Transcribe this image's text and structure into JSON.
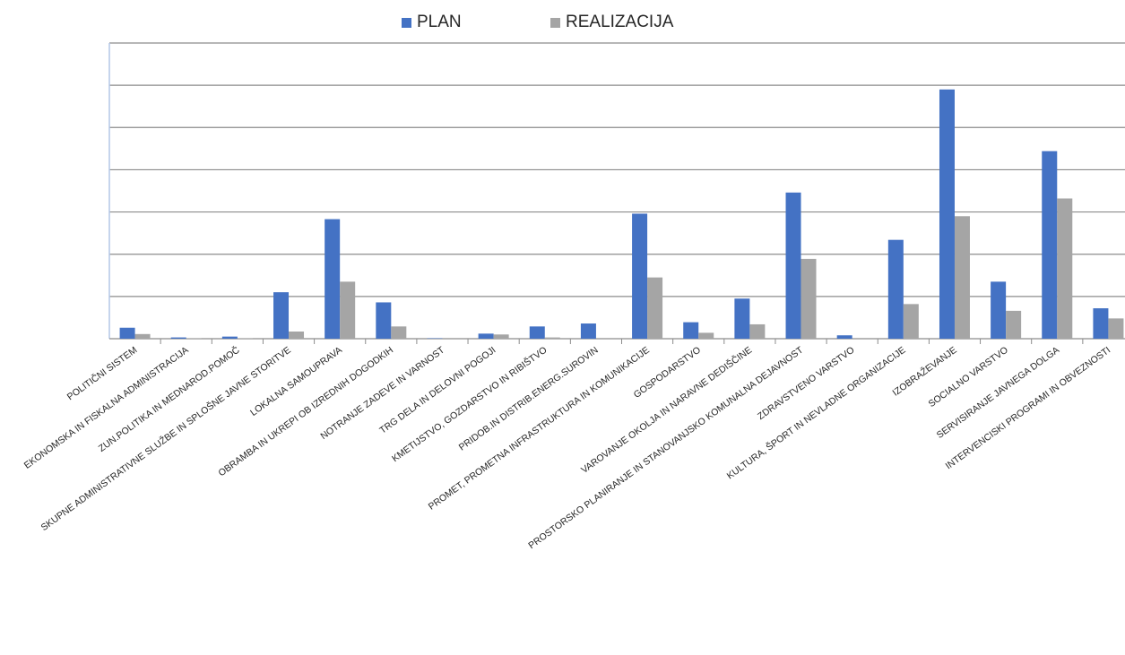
{
  "chart_data": {
    "type": "bar",
    "title": "",
    "xlabel": "",
    "ylabel": "",
    "ylim": [
      0,
      7
    ],
    "grid": true,
    "legend_position": "top",
    "colors": {
      "PLAN": "#4472c4",
      "REALIZACIJA": "#a5a5a5",
      "grid": "#8c8c8c",
      "axis": "#b4c7e7"
    },
    "categories": [
      "POLITIČNI SISTEM",
      "EKONOMSKA IN FISKALNA ADMINISTRACIJA",
      "ZUN.POLITIKA IN MEDNAROD.POMOČ",
      "SKUPNE ADMINISTRATIVNE SLUŽBE IN SPLOŠNE JAVNE STORITVE",
      "LOKALNA SAMOUPRAVA",
      "OBRAMBA IN UKREPI OB IZREDNIH DOGODKIH",
      "NOTRANJE ZADEVE IN VARNOST",
      "TRG DELA IN DELOVNI POGOJI",
      "KMETIJSTVO, GOZDARSTVO IN RIBIŠTVO",
      "PRIDOB.IN DISTRIB.ENERG.SUROVIN",
      "PROMET, PROMETNA INFRASTRUKTURA IN KOMUNIKACIJE",
      "GOSPODARSTVO",
      "VAROVANJE OKOLJA IN NARAVNE DEDIŠČINE",
      "PROSTORSKO PLANIRANJE IN STANOVANJSKO KOMUNALNA DEJAVNOST",
      "ZDRAVSTVENO VARSTVO",
      "KULTURA, ŠPORT IN NEVLADNE ORGANIZACIJE",
      "IZOBRAŽEVANJE",
      "SOCIALNO VARSTVO",
      "SERVISIRANJE JAVNEGA DOLGA",
      "INTERVENCISKI PROGRAMI IN OBVEZNOSTI"
    ],
    "series": [
      {
        "name": "PLAN",
        "values": [
          0.26,
          0.03,
          0.05,
          1.1,
          2.83,
          0.86,
          0.01,
          0.12,
          0.29,
          0.36,
          2.96,
          0.39,
          0.95,
          3.46,
          0.08,
          2.34,
          5.9,
          1.35,
          4.44,
          0.72
        ]
      },
      {
        "name": "REALIZACIJA",
        "values": [
          0.11,
          0.01,
          0.01,
          0.17,
          1.35,
          0.29,
          0.0,
          0.1,
          0.03,
          0.0,
          1.45,
          0.14,
          0.34,
          1.89,
          0.0,
          0.82,
          2.9,
          0.66,
          3.32,
          0.48
        ]
      }
    ]
  }
}
